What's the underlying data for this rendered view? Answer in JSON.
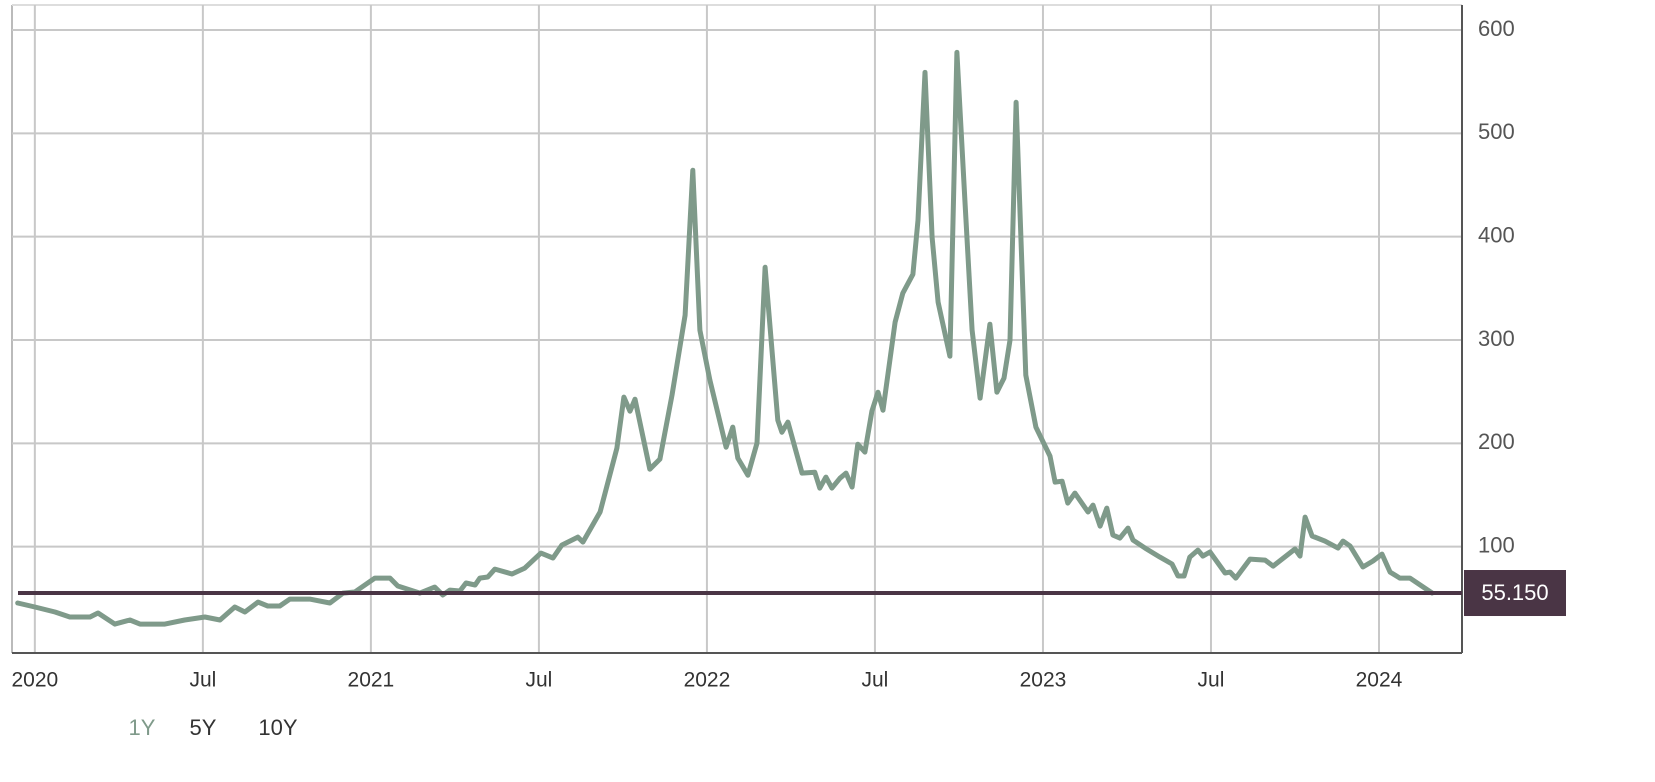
{
  "chart_data": {
    "type": "line",
    "color": "#7f9a8a",
    "x": [
      2019.949,
      2020.0,
      2020.06,
      2020.104,
      2020.164,
      2020.188,
      2020.238,
      2020.283,
      2020.313,
      2020.387,
      2020.446,
      2020.506,
      2020.551,
      2020.595,
      2020.625,
      2020.664,
      2020.693,
      2020.729,
      2020.759,
      2020.818,
      2020.878,
      2020.917,
      2020.952,
      2021.012,
      2021.057,
      2021.08,
      2021.146,
      2021.19,
      2021.214,
      2021.235,
      2021.265,
      2021.283,
      2021.31,
      2021.324,
      2021.348,
      2021.369,
      2021.42,
      2021.458,
      2021.506,
      2021.542,
      2021.568,
      2021.616,
      2021.631,
      2021.682,
      2021.732,
      2021.753,
      2021.771,
      2021.786,
      2021.83,
      2021.86,
      2021.896,
      2021.935,
      2021.958,
      2021.979,
      2022.009,
      2022.057,
      2022.077,
      2022.092,
      2022.122,
      2022.149,
      2022.173,
      2022.211,
      2022.223,
      2022.241,
      2022.283,
      2022.321,
      2022.336,
      2022.354,
      2022.372,
      2022.396,
      2022.414,
      2022.432,
      2022.449,
      2022.47,
      2022.491,
      2022.509,
      2022.524,
      2022.56,
      2022.583,
      2022.613,
      2022.628,
      2022.649,
      2022.67,
      2022.688,
      2022.723,
      2022.744,
      2022.768,
      2022.789,
      2022.813,
      2022.842,
      2022.863,
      2022.884,
      2022.902,
      2022.92,
      2022.949,
      2022.979,
      2023.021,
      2023.036,
      2023.057,
      2023.074,
      2023.095,
      2023.134,
      2023.149,
      2023.17,
      2023.19,
      2023.208,
      2023.229,
      2023.253,
      2023.268,
      2023.304,
      2023.348,
      2023.384,
      2023.402,
      2023.42,
      2023.437,
      2023.461,
      2023.476,
      2023.497,
      2023.542,
      2023.557,
      2023.574,
      2023.616,
      2023.661,
      2023.685,
      2023.75,
      2023.765,
      2023.78,
      2023.801,
      2023.839,
      2023.878,
      2023.893,
      2023.914,
      2023.952,
      2023.982,
      2024.009,
      2024.033,
      2024.062,
      2024.092,
      2024.158
    ],
    "values": [
      45.5,
      41.6,
      36.8,
      31.9,
      31.9,
      35.8,
      25.1,
      29.0,
      25.1,
      25.1,
      29.0,
      31.9,
      29.0,
      41.6,
      36.8,
      46.4,
      42.6,
      42.6,
      49.3,
      49.3,
      45.5,
      55.1,
      56.1,
      69.6,
      69.6,
      61.9,
      55.1,
      60.9,
      53.2,
      58.0,
      57.1,
      64.8,
      62.9,
      69.6,
      70.6,
      78.3,
      73.5,
      79.3,
      93.8,
      89.0,
      101.5,
      109.3,
      104.4,
      133.5,
      195.4,
      244.7,
      231.1,
      242.7,
      175.0,
      184.7,
      246.6,
      324.0,
      464.2,
      309.5,
      261.1,
      196.3,
      215.7,
      185.7,
      169.2,
      200.2,
      370.4,
      222.4,
      210.8,
      220.5,
      171.2,
      172.1,
      156.7,
      167.3,
      156.7,
      166.3,
      171.2,
      157.6,
      199.2,
      191.5,
      231.1,
      249.5,
      232.1,
      317.2,
      345.3,
      363.6,
      415.9,
      559.0,
      399.4,
      336.6,
      284.3,
      578.3,
      433.3,
      309.5,
      243.7,
      315.3,
      249.5,
      263.1,
      299.8,
      530.0,
      266.0,
      215.7,
      187.6,
      162.5,
      163.4,
      142.2,
      151.8,
      133.5,
      140.2,
      119.9,
      137.3,
      111.2,
      108.3,
      118.0,
      106.4,
      98.6,
      89.9,
      83.2,
      71.6,
      71.6,
      89.9,
      96.7,
      90.9,
      94.8,
      74.5,
      75.4,
      69.6,
      88.0,
      87.0,
      81.2,
      97.7,
      90.9,
      128.6,
      110.3,
      105.4,
      98.6,
      105.4,
      100.6,
      80.3,
      86.1,
      92.8,
      75.4,
      69.6,
      69.6,
      55.2
    ],
    "xlim": [
      2019.932,
      2024.247
    ],
    "xticks": [
      2020,
      {
        "value": 2020.5,
        "label": "Jul"
      },
      2021,
      {
        "value": 2021.5,
        "label": "Jul"
      },
      2022,
      {
        "value": 2022.5,
        "label": "Jul"
      },
      2023,
      {
        "value": 2023.5,
        "label": "Jul"
      },
      2024
    ],
    "ylim": [
      0,
      600
    ],
    "yticks": [
      100,
      200,
      300,
      400,
      500,
      600
    ],
    "grid": true,
    "current": {
      "value": 55.15,
      "label": "55.150",
      "color": "#4a3545"
    }
  },
  "range_buttons": [
    "1Y",
    "5Y",
    "10Y"
  ]
}
